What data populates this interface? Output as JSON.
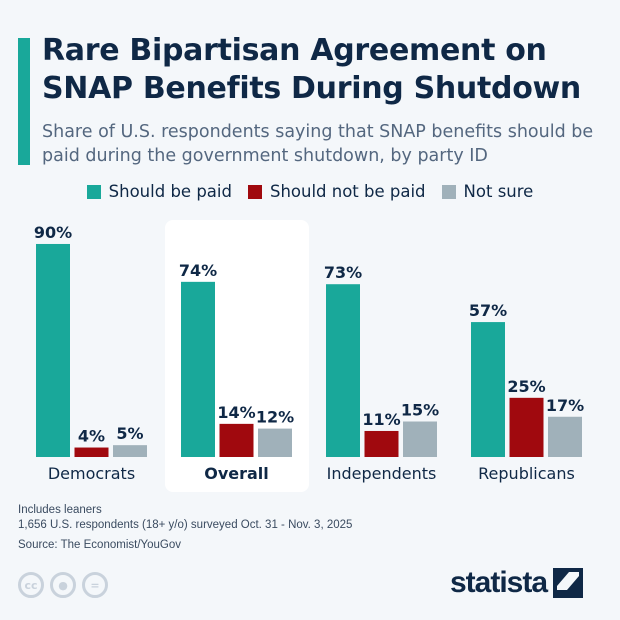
{
  "header": {
    "title": "Rare Bipartisan Agreement on SNAP Benefits During Shutdown",
    "subtitle": "Share of U.S. respondents saying that SNAP benefits should be paid during the government shutdown, by party ID"
  },
  "chart_data": {
    "type": "bar",
    "categories": [
      "Democrats",
      "Overall",
      "Independents",
      "Republicans"
    ],
    "highlighted_category": "Overall",
    "series": [
      {
        "name": "Should be paid",
        "color": "#19a89a",
        "values": [
          90,
          74,
          73,
          57
        ]
      },
      {
        "name": "Should not be paid",
        "color": "#a0090e",
        "values": [
          4,
          14,
          11,
          25
        ]
      },
      {
        "name": "Not sure",
        "color": "#a0b1ba",
        "values": [
          5,
          12,
          15,
          17
        ]
      }
    ],
    "ylim": [
      0,
      100
    ],
    "unit": "%",
    "grid": false,
    "legend": "top"
  },
  "footer": {
    "note1": "Includes leaners",
    "note2": "1,656 U.S. respondents (18+ y/o) surveyed Oct. 31 - Nov. 3, 2025",
    "source": "Source: The Economist/YouGov",
    "logo": "statista"
  },
  "icons": [
    "cc-icon",
    "attribution-icon",
    "no-derivatives-icon"
  ]
}
